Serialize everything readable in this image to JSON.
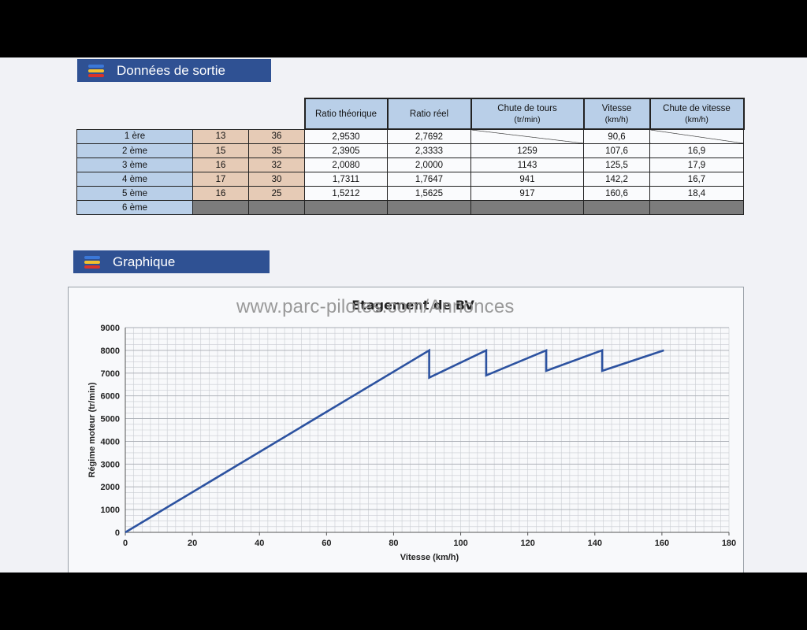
{
  "sections": {
    "output": "Données de sortie",
    "graph": "Graphique"
  },
  "table": {
    "headers": {
      "ratio_theo": "Ratio théorique",
      "ratio_reel": "Ratio réel",
      "chute_tours_1": "Chute de tours",
      "chute_tours_2": "(tr/min)",
      "vitesse_1": "Vitesse",
      "vitesse_2": "(km/h)",
      "chute_vitesse_1": "Chute de vitesse",
      "chute_vitesse_2": "(km/h)"
    },
    "rows": [
      {
        "gear": "1 ère",
        "t1": "13",
        "t2": "36",
        "ratio_theo": "2,9530",
        "ratio_reel": "2,7692",
        "chute_tours": "",
        "vitesse": "90,6",
        "chute_vitesse": ""
      },
      {
        "gear": "2 ème",
        "t1": "15",
        "t2": "35",
        "ratio_theo": "2,3905",
        "ratio_reel": "2,3333",
        "chute_tours": "1259",
        "vitesse": "107,6",
        "chute_vitesse": "16,9"
      },
      {
        "gear": "3 ème",
        "t1": "16",
        "t2": "32",
        "ratio_theo": "2,0080",
        "ratio_reel": "2,0000",
        "chute_tours": "1143",
        "vitesse": "125,5",
        "chute_vitesse": "17,9"
      },
      {
        "gear": "4 ème",
        "t1": "17",
        "t2": "30",
        "ratio_theo": "1,7311",
        "ratio_reel": "1,7647",
        "chute_tours": "941",
        "vitesse": "142,2",
        "chute_vitesse": "16,7"
      },
      {
        "gear": "5 ème",
        "t1": "16",
        "t2": "25",
        "ratio_theo": "1,5212",
        "ratio_reel": "1,5625",
        "chute_tours": "917",
        "vitesse": "160,6",
        "chute_vitesse": "18,4"
      },
      {
        "gear": "6 ème",
        "t1": "",
        "t2": "",
        "ratio_theo": "",
        "ratio_reel": "",
        "chute_tours": "",
        "vitesse": "",
        "chute_vitesse": ""
      }
    ]
  },
  "watermark": "www.parc-pilotes.com/Annonces",
  "colors": {
    "header_blue": "#2f5193",
    "cell_blue": "#b9cfe8",
    "cell_peach": "#e6cbb6",
    "line": "#2c52a0"
  },
  "chart_data": {
    "type": "line",
    "title": "Etagement de BV",
    "xlabel": "Vitesse (km/h)",
    "ylabel": "Régime moteur (tr/min)",
    "xlim": [
      0,
      180
    ],
    "ylim": [
      0,
      9000
    ],
    "xticks": [
      0,
      20,
      40,
      60,
      80,
      100,
      120,
      140,
      160,
      180
    ],
    "yticks": [
      0,
      1000,
      2000,
      3000,
      4000,
      5000,
      6000,
      7000,
      8000,
      9000
    ],
    "grid": true,
    "series": [
      {
        "x": [
          0,
          90.6,
          90.6,
          107.6,
          107.6,
          125.5,
          125.5,
          142.2,
          142.2,
          160.6
        ],
        "y": [
          0,
          8000,
          6800,
          8000,
          6900,
          8000,
          7100,
          8000,
          7100,
          8000
        ]
      }
    ]
  }
}
